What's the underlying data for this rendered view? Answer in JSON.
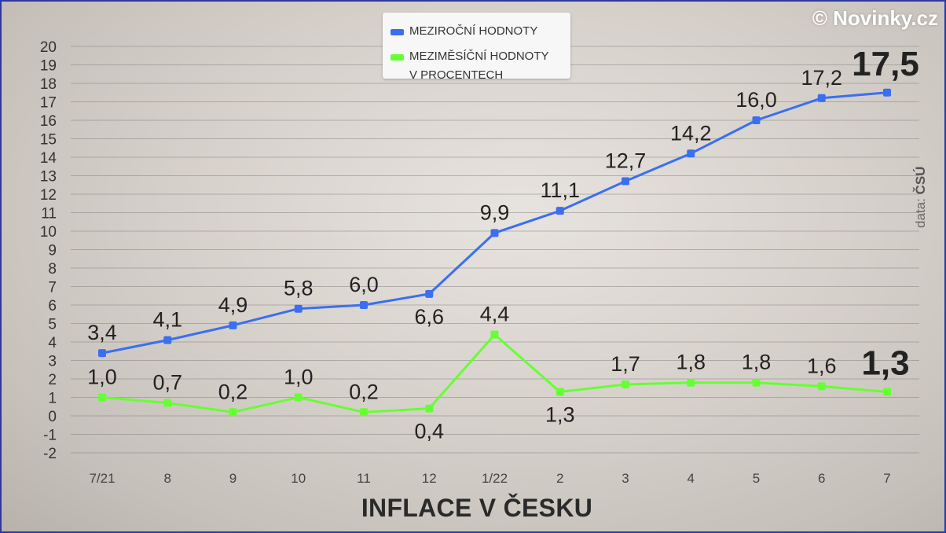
{
  "brand": "© Novinky.cz",
  "source": {
    "prefix": "data:",
    "name": "ČSÚ"
  },
  "legend": [
    {
      "label": "MEZIROČNÍ HODNOTY",
      "color": "#3a6ff0"
    },
    {
      "label": "MEZIMĚSÍČNÍ HODNOTY",
      "label2": "V PROCENTECH",
      "color": "#66ff33"
    }
  ],
  "chart_data": {
    "type": "line",
    "title": "INFLACE V ČESKU",
    "categories": [
      "7/21",
      "8",
      "9",
      "10",
      "11",
      "12",
      "1/22",
      "2",
      "3",
      "4",
      "5",
      "6",
      "7"
    ],
    "series": [
      {
        "name": "MEZIROČNÍ HODNOTY",
        "color": "#3a6ff0",
        "values": [
          3.4,
          4.1,
          4.9,
          5.8,
          6.0,
          6.6,
          9.9,
          11.1,
          12.7,
          14.2,
          16.0,
          17.2,
          17.5
        ],
        "labels": [
          "3,4",
          "4,1",
          "4,9",
          "5,8",
          "6,0",
          "6,6",
          "9,9",
          "11,1",
          "12,7",
          "14,2",
          "16,0",
          "17,2",
          "17,5"
        ]
      },
      {
        "name": "MEZIMĚSÍČNÍ HODNOTY V PROCENTECH",
        "color": "#66ff33",
        "values": [
          1.0,
          0.7,
          0.2,
          1.0,
          0.2,
          0.4,
          4.4,
          1.3,
          1.7,
          1.8,
          1.8,
          1.6,
          1.3
        ],
        "labels": [
          "1,0",
          "0,7",
          "0,2",
          "1,0",
          "0,2",
          "0,4",
          "4,4",
          "1,3",
          "1,7",
          "1,8",
          "1,8",
          "1,6",
          "1,3"
        ]
      }
    ],
    "ylim": [
      -2,
      20
    ],
    "yticks": [
      -2,
      -1,
      0,
      1,
      2,
      3,
      4,
      5,
      6,
      7,
      8,
      9,
      10,
      11,
      12,
      13,
      14,
      15,
      16,
      17,
      18,
      19,
      20
    ],
    "grid": true,
    "legend_position": "top-center"
  }
}
